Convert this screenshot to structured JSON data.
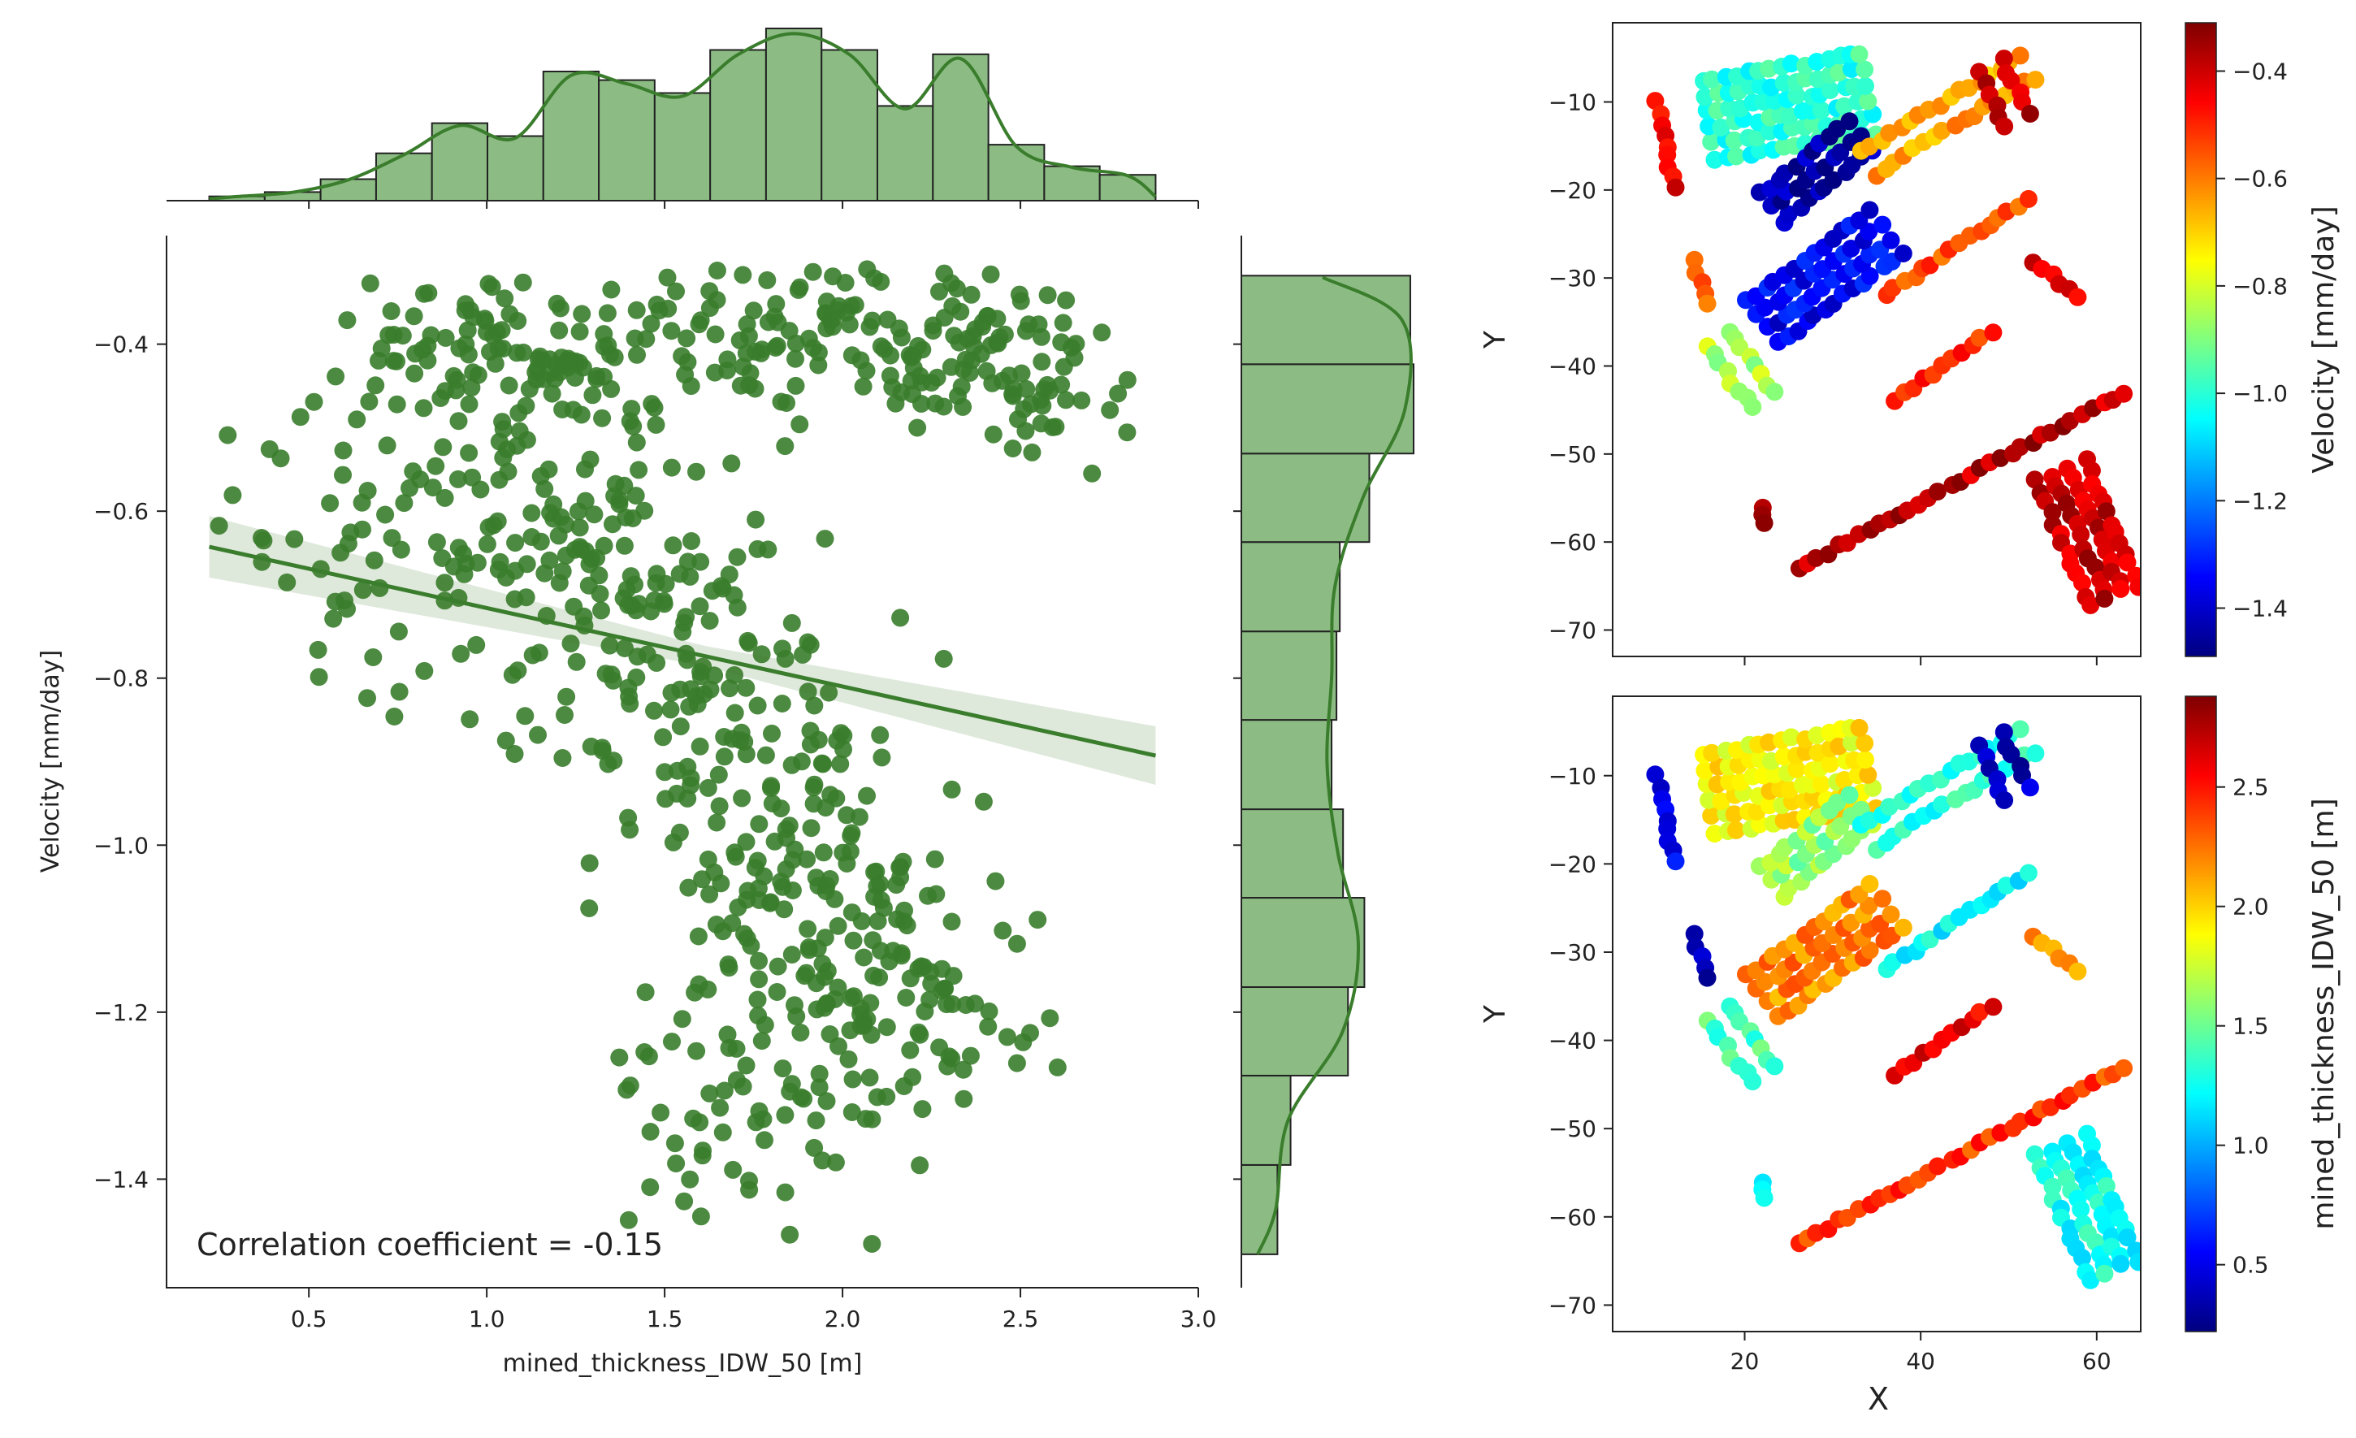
{
  "chart_data": [
    {
      "id": "joint",
      "type": "scatter",
      "xlabel": "mined_thickness_IDW_50 [m]",
      "ylabel": "Velocity [mm/day]",
      "xlim": [
        0.1,
        3.0
      ],
      "ylim": [
        -1.53,
        -0.27
      ],
      "xticks": [
        0.5,
        1.0,
        1.5,
        2.0,
        2.5,
        3.0
      ],
      "xtick_labels": [
        "0.5",
        "1.0",
        "1.5",
        "2.0",
        "2.5",
        "3.0"
      ],
      "yticks": [
        -0.4,
        -0.6,
        -0.8,
        -1.0,
        -1.2,
        -1.4
      ],
      "ytick_labels": [
        "−0.4",
        "−0.6",
        "−0.8",
        "−1.0",
        "−1.2",
        "−1.4"
      ],
      "annotation": "Correlation coefficient = -0.15",
      "point_color": "#3a7d2c",
      "regression": {
        "slope": -0.094,
        "intercept": -0.622,
        "x_range": [
          0.22,
          2.88
        ]
      },
      "clusters": [
        {
          "cx": 1.1,
          "cy": -0.42,
          "sx": 0.25,
          "sy": 0.05,
          "n": 130
        },
        {
          "cx": 1.85,
          "cy": -0.39,
          "sx": 0.25,
          "sy": 0.05,
          "n": 90
        },
        {
          "cx": 2.35,
          "cy": -0.41,
          "sx": 0.12,
          "sy": 0.04,
          "n": 60
        },
        {
          "cx": 2.6,
          "cy": -0.45,
          "sx": 0.12,
          "sy": 0.05,
          "n": 35
        },
        {
          "cx": 0.8,
          "cy": -0.62,
          "sx": 0.3,
          "sy": 0.1,
          "n": 80
        },
        {
          "cx": 1.35,
          "cy": -0.67,
          "sx": 0.2,
          "sy": 0.09,
          "n": 110
        },
        {
          "cx": 1.65,
          "cy": -0.87,
          "sx": 0.25,
          "sy": 0.1,
          "n": 110
        },
        {
          "cx": 1.95,
          "cy": -1.08,
          "sx": 0.22,
          "sy": 0.1,
          "n": 130
        },
        {
          "cx": 2.25,
          "cy": -1.2,
          "sx": 0.2,
          "sy": 0.06,
          "n": 60
        },
        {
          "cx": 1.75,
          "cy": -1.33,
          "sx": 0.25,
          "sy": 0.08,
          "n": 60
        }
      ]
    },
    {
      "id": "top_histogram",
      "type": "bar",
      "xlabel": "mined_thickness_IDW_50 [m]",
      "bin_edges": [
        0.22,
        0.376,
        0.533,
        0.689,
        0.846,
        1.002,
        1.159,
        1.315,
        1.472,
        1.628,
        1.785,
        1.941,
        2.098,
        2.254,
        2.41,
        2.567,
        2.723,
        2.88
      ],
      "counts": [
        1,
        2,
        5,
        11,
        18,
        15,
        30,
        28,
        25,
        35,
        40,
        35,
        22,
        34,
        13,
        8,
        6
      ],
      "kde_color": "#3a7d2c",
      "bar_color": "#8cbc84"
    },
    {
      "id": "right_histogram",
      "type": "bar",
      "ylabel": "Velocity [mm/day]",
      "bin_edges": [
        -1.49,
        -1.383,
        -1.276,
        -1.17,
        -1.063,
        -0.957,
        -0.85,
        -0.744,
        -0.637,
        -0.531,
        -0.424,
        -0.318
      ],
      "counts": [
        22,
        30,
        65,
        75,
        62,
        55,
        58,
        60,
        78,
        105,
        103
      ],
      "kde_color": "#3a7d2c",
      "bar_color": "#8cbc84"
    },
    {
      "id": "map_velocity",
      "type": "scatter",
      "xlabel": "",
      "ylabel": "Y",
      "xlim": [
        5,
        65
      ],
      "ylim": [
        -73,
        -1
      ],
      "yticks": [
        -10,
        -20,
        -30,
        -40,
        -50,
        -60,
        -70
      ],
      "ytick_labels": [
        "−10",
        "−20",
        "−30",
        "−40",
        "−50",
        "−60",
        "−70"
      ],
      "xticks": [
        20,
        40,
        60
      ],
      "colorbar": {
        "label": "Velocity [mm/day]",
        "range": [
          -1.49,
          -0.31
        ],
        "ticks": [
          -0.4,
          -0.6,
          -0.8,
          -1.0,
          -1.2,
          -1.4
        ],
        "tick_labels": [
          "−0.4",
          "−0.6",
          "−0.8",
          "−1.0",
          "−1.2",
          "−1.4"
        ],
        "colormap": "jet"
      },
      "strips": [
        {
          "x1": 16,
          "y1": -12,
          "x2": 34,
          "y2": -9,
          "w": 9,
          "v": -1.0
        },
        {
          "x1": 23,
          "y1": -22,
          "x2": 33,
          "y2": -14,
          "w": 4,
          "v": -1.45
        },
        {
          "x1": 22,
          "y1": -35,
          "x2": 36,
          "y2": -25,
          "w": 6,
          "v": -1.35
        },
        {
          "x1": 17,
          "y1": -37,
          "x2": 22,
          "y2": -44,
          "w": 3,
          "v": -0.85
        },
        {
          "x1": 34,
          "y1": -17,
          "x2": 52,
          "y2": -6,
          "w": 3,
          "v": -0.65
        },
        {
          "x1": 36,
          "y1": -32,
          "x2": 52,
          "y2": -21,
          "w": 2,
          "v": -0.55
        },
        {
          "x1": 37,
          "y1": -44,
          "x2": 48,
          "y2": -36,
          "w": 2,
          "v": -0.5
        },
        {
          "x1": 26,
          "y1": -63,
          "x2": 63,
          "y2": -43,
          "w": 2,
          "v": -0.38
        },
        {
          "x1": 56,
          "y1": -52,
          "x2": 62,
          "y2": -66,
          "w": 6,
          "v": -0.4
        },
        {
          "x1": 10,
          "y1": -10,
          "x2": 12,
          "y2": -20,
          "w": 2,
          "v": -0.45
        },
        {
          "x1": 14,
          "y1": -28,
          "x2": 16,
          "y2": -33,
          "w": 2,
          "v": -0.55
        },
        {
          "x1": 48,
          "y1": -6,
          "x2": 51,
          "y2": -12,
          "w": 3,
          "v": -0.38
        },
        {
          "x1": 53,
          "y1": -28,
          "x2": 58,
          "y2": -32,
          "w": 2,
          "v": -0.45
        },
        {
          "x1": 22,
          "y1": -56,
          "x2": 22,
          "y2": -58,
          "w": 1,
          "v": -0.35
        }
      ]
    },
    {
      "id": "map_thickness",
      "type": "scatter",
      "xlabel": "X",
      "ylabel": "Y",
      "xlim": [
        5,
        65
      ],
      "ylim": [
        -73,
        -1
      ],
      "xticks": [
        20,
        40,
        60
      ],
      "xtick_labels": [
        "20",
        "40",
        "60"
      ],
      "yticks": [
        -10,
        -20,
        -30,
        -40,
        -50,
        -60,
        -70
      ],
      "ytick_labels": [
        "−10",
        "−20",
        "−30",
        "−40",
        "−50",
        "−60",
        "−70"
      ],
      "colorbar": {
        "label": "mined_thickness_IDW_50 [m]",
        "range": [
          0.22,
          2.88
        ],
        "ticks": [
          2.5,
          2.0,
          1.5,
          1.0,
          0.5
        ],
        "tick_labels": [
          "2.5",
          "2.0",
          "1.5",
          "1.0",
          "0.5"
        ],
        "colormap": "jet"
      },
      "strips": [
        {
          "x1": 16,
          "y1": -12,
          "x2": 34,
          "y2": -9,
          "w": 9,
          "v": 1.9
        },
        {
          "x1": 23,
          "y1": -22,
          "x2": 33,
          "y2": -14,
          "w": 4,
          "v": 1.6
        },
        {
          "x1": 22,
          "y1": -35,
          "x2": 36,
          "y2": -25,
          "w": 6,
          "v": 2.2
        },
        {
          "x1": 17,
          "y1": -37,
          "x2": 22,
          "y2": -44,
          "w": 3,
          "v": 1.4
        },
        {
          "x1": 34,
          "y1": -17,
          "x2": 52,
          "y2": -6,
          "w": 3,
          "v": 1.3
        },
        {
          "x1": 36,
          "y1": -32,
          "x2": 52,
          "y2": -21,
          "w": 2,
          "v": 1.2
        },
        {
          "x1": 37,
          "y1": -44,
          "x2": 48,
          "y2": -36,
          "w": 2,
          "v": 2.6
        },
        {
          "x1": 26,
          "y1": -63,
          "x2": 63,
          "y2": -43,
          "w": 2,
          "v": 2.4
        },
        {
          "x1": 56,
          "y1": -52,
          "x2": 62,
          "y2": -66,
          "w": 6,
          "v": 1.25
        },
        {
          "x1": 10,
          "y1": -10,
          "x2": 12,
          "y2": -20,
          "w": 2,
          "v": 0.5
        },
        {
          "x1": 14,
          "y1": -28,
          "x2": 16,
          "y2": -33,
          "w": 2,
          "v": 0.4
        },
        {
          "x1": 48,
          "y1": -6,
          "x2": 51,
          "y2": -12,
          "w": 3,
          "v": 0.4
        },
        {
          "x1": 53,
          "y1": -28,
          "x2": 58,
          "y2": -32,
          "w": 2,
          "v": 2.1
        },
        {
          "x1": 22,
          "y1": -56,
          "x2": 22,
          "y2": -58,
          "w": 1,
          "v": 1.2
        }
      ]
    }
  ]
}
